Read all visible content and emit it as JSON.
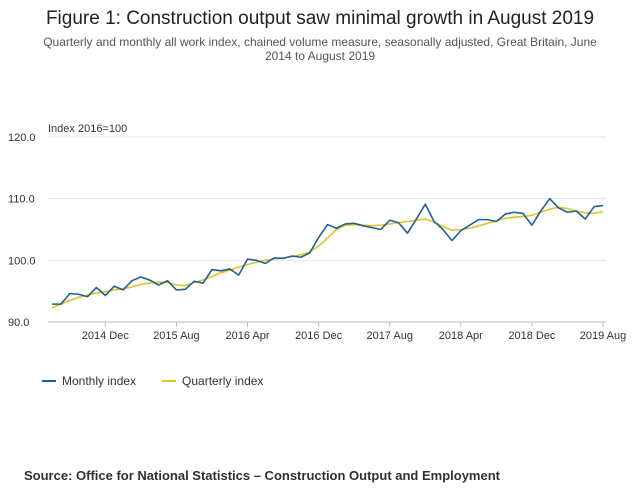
{
  "title": "Figure 1: Construction output saw minimal growth in August 2019",
  "subtitle": "Quarterly and monthly all work index, chained volume measure, seasonally adjusted, Great Britain, June 2014 to August 2019",
  "source": "Source: Office for National Statistics – Construction Output and Employment",
  "colors": {
    "monthly": "#206095",
    "quarterly": "#e0c22b",
    "grid": "#e6e6e6"
  },
  "chart_data": {
    "type": "line",
    "ylabel": "Index 2016=100",
    "ylim": [
      90,
      120
    ],
    "yticks": [
      "90.0",
      "100.0",
      "110.0",
      "120.0"
    ],
    "xticks": [
      {
        "label": "2014 Dec",
        "index": 6
      },
      {
        "label": "2015 Aug",
        "index": 14
      },
      {
        "label": "2016 Apr",
        "index": 22
      },
      {
        "label": "2016 Dec",
        "index": 30
      },
      {
        "label": "2017 Aug",
        "index": 38
      },
      {
        "label": "2018 Apr",
        "index": 46
      },
      {
        "label": "2018 Dec",
        "index": 54
      },
      {
        "label": "2019 Aug",
        "index": 62
      }
    ],
    "x_start": "2014 Jun",
    "series": [
      {
        "name": "Monthly index",
        "color": "#206095",
        "values": [
          92.9,
          92.9,
          94.6,
          94.5,
          94.1,
          95.6,
          94.3,
          95.8,
          95.2,
          96.7,
          97.3,
          96.8,
          96.0,
          96.7,
          95.2,
          95.3,
          96.6,
          96.3,
          98.5,
          98.3,
          98.6,
          97.6,
          100.2,
          100.0,
          99.5,
          100.4,
          100.3,
          100.7,
          100.5,
          101.2,
          103.7,
          105.8,
          105.2,
          105.9,
          106.0,
          105.6,
          105.3,
          105.0,
          106.5,
          106.1,
          104.4,
          106.7,
          109.1,
          106.3,
          105.0,
          103.2,
          104.8,
          105.7,
          106.6,
          106.6,
          106.3,
          107.5,
          107.8,
          107.6,
          105.7,
          108.0,
          110.0,
          108.5,
          107.8,
          108.0,
          106.7,
          108.7,
          108.9
        ]
      },
      {
        "name": "Quarterly index",
        "color": "#e0c22b",
        "values": [
          92.3,
          92.9,
          93.5,
          94.0,
          94.4,
          94.7,
          94.9,
          95.2,
          95.4,
          95.7,
          96.1,
          96.3,
          96.5,
          96.4,
          96.0,
          95.9,
          96.4,
          96.8,
          97.4,
          98.0,
          98.4,
          98.9,
          99.3,
          99.7,
          100.0,
          100.2,
          100.4,
          100.6,
          100.9,
          101.4,
          102.3,
          103.6,
          105.0,
          105.7,
          105.8,
          105.7,
          105.6,
          105.7,
          105.9,
          106.1,
          106.3,
          106.5,
          106.7,
          106.2,
          105.5,
          104.9,
          105.0,
          105.2,
          105.6,
          106.0,
          106.4,
          106.8,
          107.0,
          107.1,
          107.3,
          107.8,
          108.3,
          108.6,
          108.4,
          108.0,
          107.7,
          107.6,
          107.9
        ]
      }
    ],
    "grid": true,
    "legend_position": "bottom-left"
  }
}
